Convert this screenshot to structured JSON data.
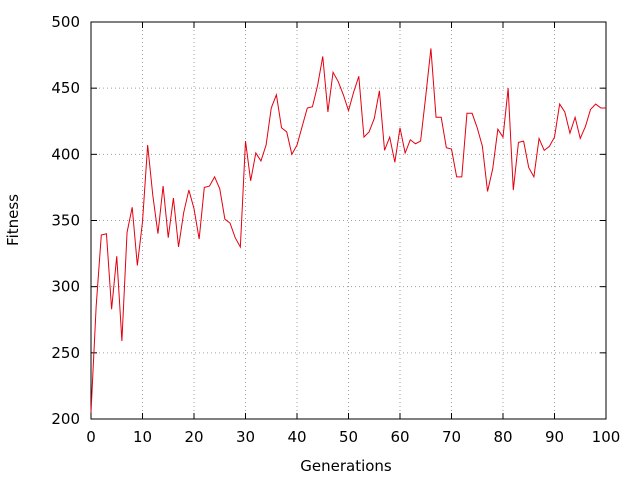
{
  "chart_data": {
    "type": "line",
    "title": "",
    "xlabel": "Generations",
    "ylabel": "Fitness",
    "xlim": [
      0,
      100
    ],
    "ylim": [
      200,
      500
    ],
    "x_ticks": [
      0,
      10,
      20,
      30,
      40,
      50,
      60,
      70,
      80,
      90,
      100
    ],
    "y_ticks": [
      200,
      250,
      300,
      350,
      400,
      450,
      500
    ],
    "x_tick_labels": [
      "0",
      "10",
      "20",
      "30",
      "40",
      "50",
      "60",
      "70",
      "80",
      "90",
      "100"
    ],
    "y_tick_labels": [
      "200",
      "250",
      "300",
      "350",
      "400",
      "450",
      "500"
    ],
    "grid": true,
    "legend": "none",
    "colors": {
      "series": "#e4000f",
      "grid": "#a0a0a0",
      "axes": "#000000"
    },
    "series": [
      {
        "x": [
          0,
          1,
          2,
          3,
          4,
          5,
          6,
          7,
          8,
          9,
          10,
          11,
          12,
          13,
          14,
          15,
          16,
          17,
          18,
          19,
          20,
          21,
          22,
          23,
          24,
          25,
          26,
          27,
          28,
          29,
          30,
          31,
          32,
          33,
          34,
          35,
          36,
          37,
          38,
          39,
          40,
          41,
          42,
          43,
          44,
          45,
          46,
          47,
          48,
          49,
          50,
          51,
          52,
          53,
          54,
          55,
          56,
          57,
          58,
          59,
          60,
          61,
          62,
          63,
          64,
          65,
          66,
          67,
          68,
          69,
          70,
          71,
          72,
          73,
          74,
          75,
          76,
          77,
          78,
          79,
          80,
          81,
          82,
          83,
          84,
          85,
          86,
          87,
          88,
          89,
          90,
          91,
          92,
          93,
          94,
          95,
          96,
          97,
          98,
          99,
          100
        ],
        "values": [
          205,
          285,
          339,
          340,
          283,
          323,
          259,
          341,
          360,
          316,
          349,
          407,
          369,
          340,
          376,
          337,
          367,
          330,
          356,
          373,
          359,
          336,
          375,
          376,
          383,
          374,
          351,
          348,
          337,
          330,
          410,
          380,
          401,
          395,
          407,
          435,
          445,
          420,
          417,
          400,
          407,
          421,
          435,
          436,
          452,
          474,
          432,
          462,
          455,
          445,
          433,
          447,
          459,
          413,
          417,
          427,
          448,
          403,
          413,
          394,
          420,
          401,
          411,
          408,
          410,
          444,
          480,
          428,
          428,
          405,
          404,
          383,
          383,
          431,
          431,
          420,
          406,
          372,
          389,
          419,
          413,
          450,
          373,
          409,
          410,
          390,
          383,
          412,
          403,
          406,
          413,
          438,
          432,
          416,
          428,
          412,
          421,
          434,
          438,
          435,
          435
        ]
      }
    ]
  }
}
